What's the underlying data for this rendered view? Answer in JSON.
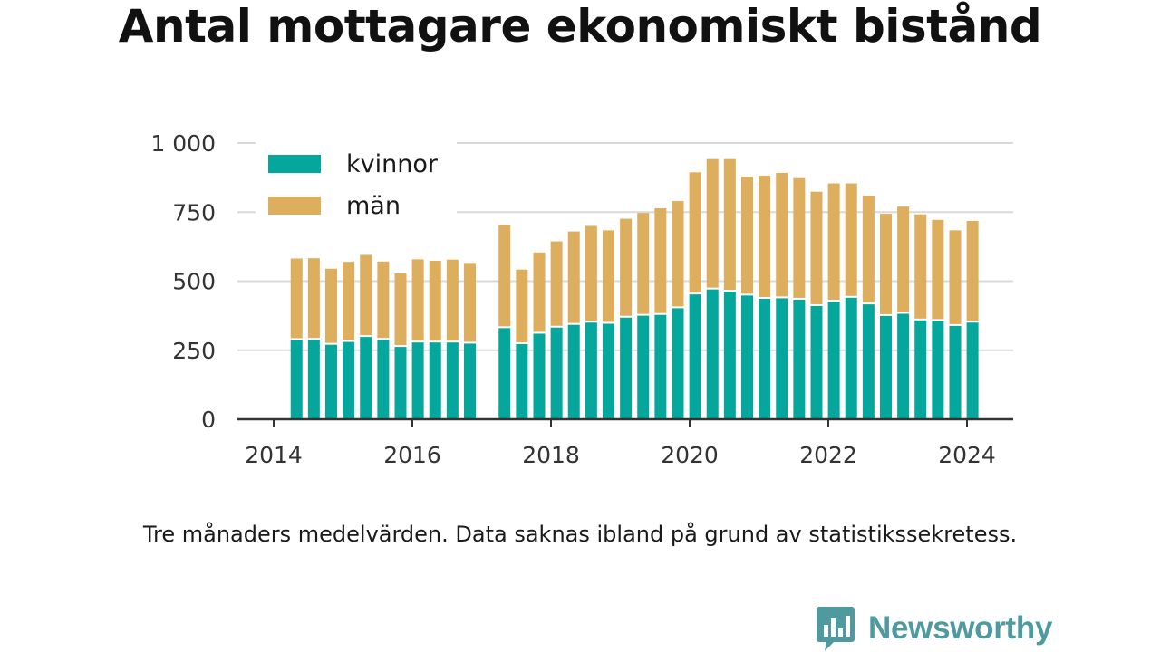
{
  "title": "Antal mottagare ekonomiskt bistånd",
  "note": "Tre månaders medelvärden. Data saknas ibland på grund av statistikssekretess.",
  "brand": {
    "name": "Newsworthy",
    "logo_icon": "chat-bar-chart-icon",
    "color": "#4e9a9e"
  },
  "chart_data": {
    "type": "bar",
    "stacked": true,
    "title": "Antal mottagare ekonomiskt bistånd",
    "xlabel": "",
    "ylabel": "",
    "ylim": [
      0,
      1000
    ],
    "yticks": [
      0,
      250,
      500,
      750,
      1000
    ],
    "ytick_labels": [
      "0",
      "250",
      "500",
      "750",
      "1 000"
    ],
    "xlim": [
      2014.0,
      2024.3
    ],
    "xticks": [
      2014,
      2016,
      2018,
      2020,
      2022,
      2024
    ],
    "xtick_labels": [
      "2014",
      "2016",
      "2018",
      "2020",
      "2022",
      "2024"
    ],
    "grid": true,
    "legend_position": "top-left",
    "x": [
      2014.33,
      2014.58,
      2014.83,
      2015.08,
      2015.33,
      2015.58,
      2015.83,
      2016.08,
      2016.33,
      2016.58,
      2016.83,
      2017.33,
      2017.58,
      2017.83,
      2018.08,
      2018.33,
      2018.58,
      2018.83,
      2019.08,
      2019.33,
      2019.58,
      2019.83,
      2020.08,
      2020.33,
      2020.58,
      2020.83,
      2021.08,
      2021.33,
      2021.58,
      2021.83,
      2022.08,
      2022.33,
      2022.58,
      2022.83,
      2023.08,
      2023.33,
      2023.58,
      2023.83,
      2024.08
    ],
    "series": [
      {
        "name": "kvinnor",
        "color": "#05a69b",
        "values": [
          287,
          288,
          270,
          280,
          298,
          288,
          262,
          278,
          278,
          278,
          274,
          330,
          272,
          310,
          332,
          342,
          350,
          346,
          368,
          375,
          378,
          402,
          452,
          470,
          462,
          448,
          436,
          438,
          433,
          410,
          426,
          440,
          416,
          374,
          382,
          358,
          356,
          338,
          350
        ]
      },
      {
        "name": "män",
        "color": "#dcae5e",
        "values": [
          295,
          295,
          275,
          290,
          297,
          283,
          266,
          301,
          296,
          300,
          292,
          374,
          270,
          294,
          312,
          338,
          350,
          338,
          358,
          372,
          386,
          388,
          442,
          472,
          480,
          430,
          446,
          454,
          440,
          414,
          428,
          414,
          394,
          370,
          388,
          384,
          366,
          346,
          368
        ]
      }
    ]
  }
}
